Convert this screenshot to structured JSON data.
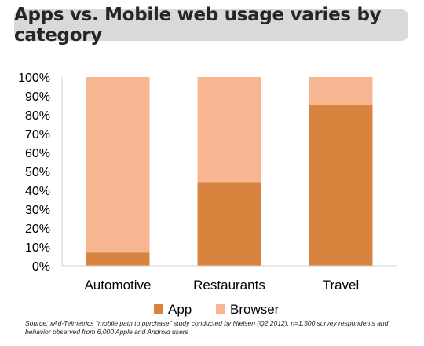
{
  "colors": {
    "app": "#d9843e",
    "browser": "#f7b591",
    "title_bg": "#d9d9d9"
  },
  "chart_data": {
    "type": "bar",
    "stacked": true,
    "title": "Apps vs. Mobile web usage varies by category",
    "xlabel": "",
    "ylabel": "",
    "categories": [
      "Automotive",
      "Restaurants",
      "Travel"
    ],
    "series": [
      {
        "name": "App",
        "values": [
          7,
          44,
          85
        ]
      },
      {
        "name": "Browser",
        "values": [
          93,
          56,
          15
        ]
      }
    ],
    "ylim": [
      0,
      100
    ],
    "yticks": [
      "0%",
      "10%",
      "20%",
      "30%",
      "40%",
      "50%",
      "60%",
      "70%",
      "80%",
      "90%",
      "100%"
    ],
    "grid": false,
    "legend_position": "bottom"
  },
  "source": "Source: xAd-Telmetrics \"mobile path to purchase\" study conducted by Nielsen (Q2 2012), n=1,500 survey respondents and behavior observed from 6,000 Apple and Android users"
}
